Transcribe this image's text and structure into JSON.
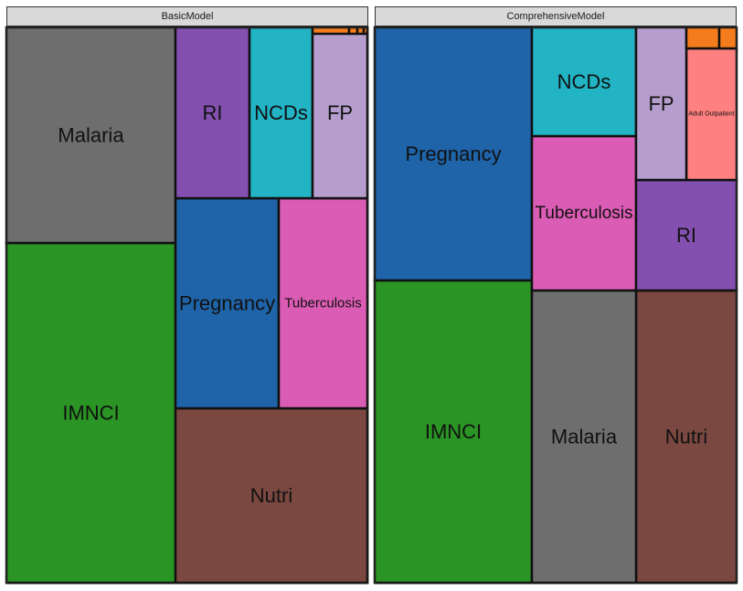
{
  "chart_data": [
    {
      "type": "treemap",
      "panel_title": "BasicModel",
      "tiles": [
        {
          "label": "IMNCI",
          "value": 23.1,
          "color": "#2a9424"
        },
        {
          "label": "Malaria",
          "value": 17.8,
          "color": "#6e6e6e"
        },
        {
          "label": "Nutri",
          "value": 15.2,
          "color": "#7a4840"
        },
        {
          "label": "Pregnancy",
          "value": 10.0,
          "color": "#1f63a8"
        },
        {
          "label": "Tuberculosis",
          "value": 8.7,
          "color": "#db5cb4"
        },
        {
          "label": "RI",
          "value": 5.1,
          "color": "#8450b0"
        },
        {
          "label": "NCDs",
          "value": 4.2,
          "color": "#22b3c4"
        },
        {
          "label": "FP",
          "value": 4.0,
          "color": "#b59ecd"
        },
        {
          "label": "",
          "value": 0.25,
          "color": "#f57c1c"
        },
        {
          "label": "",
          "value": 0.06,
          "color": "#f57c1c"
        },
        {
          "label": "",
          "value": 0.05,
          "color": "#f57c1c"
        },
        {
          "label": "",
          "value": 0.03,
          "color": "#f57c1c"
        }
      ]
    },
    {
      "type": "treemap",
      "panel_title": "ComprehensiveModel",
      "tiles": [
        {
          "label": "IMNCI",
          "value": 18.2,
          "color": "#2a9424"
        },
        {
          "label": "Pregnancy",
          "value": 16.6,
          "color": "#1f63a8"
        },
        {
          "label": "Nutri",
          "value": 11.2,
          "color": "#7a4840"
        },
        {
          "label": "Malaria",
          "value": 11.1,
          "color": "#6e6e6e"
        },
        {
          "label": "Tuberculosis",
          "value": 7.7,
          "color": "#db5cb4"
        },
        {
          "label": "NCDs",
          "value": 5.4,
          "color": "#22b3c4"
        },
        {
          "label": "RI",
          "value": 4.7,
          "color": "#8450b0"
        },
        {
          "label": "Adult Outpatient",
          "value": 3.6,
          "color": "#ff8080"
        },
        {
          "label": "FP",
          "value": 3.3,
          "color": "#b59ecd"
        },
        {
          "label": "",
          "value": 0.6,
          "color": "#f57c1c"
        },
        {
          "label": "",
          "value": 0.3,
          "color": "#f57c1c"
        }
      ]
    }
  ]
}
